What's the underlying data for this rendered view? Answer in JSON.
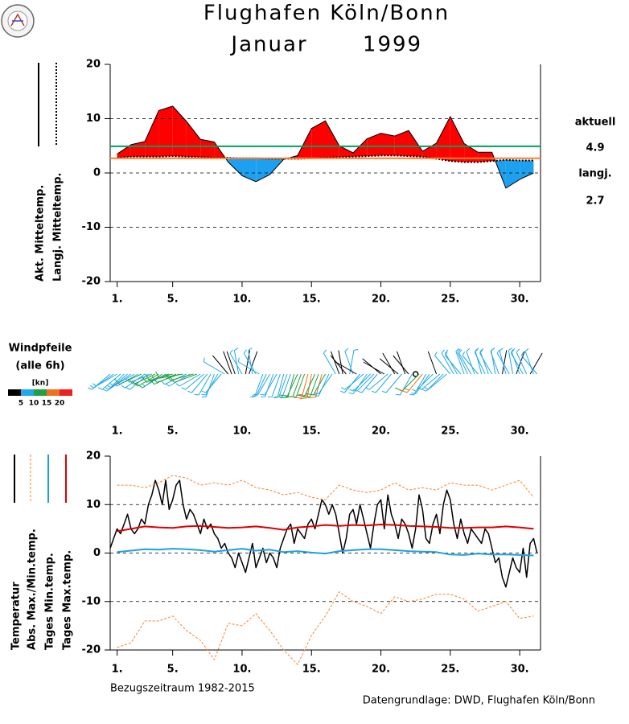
{
  "header": {
    "title": "Flughafen Köln/Bonn",
    "month": "Januar",
    "year": "1999"
  },
  "footer": {
    "reference": "Bezugszeitraum 1982-2015",
    "source": "Datengrundlage: DWD, Flughafen Köln/Bonn"
  },
  "chart_data": [
    {
      "type": "area_line",
      "x": [
        1,
        2,
        3,
        4,
        5,
        6,
        7,
        8,
        9,
        10,
        11,
        12,
        13,
        14,
        15,
        16,
        17,
        18,
        19,
        20,
        21,
        22,
        23,
        24,
        25,
        26,
        27,
        28,
        29,
        30,
        31
      ],
      "series": [
        {
          "name": "Akt. Mitteltemp.",
          "color": "#000000",
          "values": [
            3.5,
            5.2,
            5.8,
            11.5,
            12.3,
            9.5,
            6.2,
            5.7,
            2,
            -0.5,
            -1.6,
            -0.3,
            2.5,
            3.2,
            8.2,
            9.6,
            5,
            3.7,
            6.3,
            7.3,
            6.8,
            7.8,
            4,
            5.5,
            10.4,
            5.4,
            3.8,
            3.8,
            -2.8,
            -1.2,
            0
          ]
        },
        {
          "name": "Langj. Mitteltemp.",
          "color": "#000000",
          "dashed": true,
          "values": [
            2.8,
            3,
            3,
            3,
            3.1,
            3,
            2.9,
            2.8,
            2.8,
            2.7,
            2.7,
            2.6,
            2.6,
            2.6,
            2.7,
            2.8,
            2.9,
            3,
            3.1,
            3.2,
            3.2,
            3.1,
            3,
            2.6,
            2.2,
            2,
            2,
            2.2,
            2.4,
            2.3,
            2.3
          ]
        }
      ],
      "above_color": "#ff0000",
      "below_color": "#1ea0f0",
      "reference_lines": [
        {
          "name": "aktuell",
          "value": 4.9,
          "color": "#00a060"
        },
        {
          "name": "langj.",
          "value": 2.7,
          "color": "#ff7f2a"
        }
      ],
      "xlim": [
        0.5,
        31.5
      ],
      "xticks": [
        {
          "value": 1,
          "label": "1."
        },
        {
          "value": 5,
          "label": "5."
        },
        {
          "value": 10,
          "label": "10."
        },
        {
          "value": 15,
          "label": "15."
        },
        {
          "value": 20,
          "label": "20."
        },
        {
          "value": 25,
          "label": "25."
        },
        {
          "value": 30,
          "label": "30."
        }
      ],
      "ylim": [
        -20,
        20
      ],
      "yticks": [
        -20,
        -10,
        0,
        10,
        20
      ],
      "grid": true
    },
    {
      "type": "wind_barbs",
      "title": "Windpfeile",
      "subtitle": "(alle 6h)",
      "unit": "[kn]",
      "x": [
        0.5,
        0.75,
        1,
        1.25,
        1.5,
        1.75,
        2,
        2.25,
        2.5,
        2.75,
        3,
        3.25,
        3.5,
        3.75,
        4,
        4.25,
        4.5,
        4.75,
        5,
        5.25,
        5.5,
        5.75,
        6,
        6.25,
        6.5,
        6.75,
        7,
        7.25,
        7.5,
        7.75,
        8,
        8.25,
        8.5,
        8.75,
        9,
        9.25,
        9.5,
        9.75,
        10,
        10.25,
        10.5,
        10.75,
        11,
        11.25,
        11.5,
        11.75,
        12,
        12.25,
        12.5,
        12.75,
        13,
        13.25,
        13.5,
        13.75,
        14,
        14.25,
        14.5,
        14.75,
        15,
        15.25,
        15.5,
        15.75,
        16,
        16.25,
        16.5,
        16.75,
        17,
        17.25,
        17.5,
        17.75,
        18,
        18.25,
        18.5,
        18.75,
        19,
        19.25,
        19.5,
        19.75,
        20,
        20.25,
        20.5,
        20.75,
        21,
        21.25,
        21.5,
        21.75,
        22,
        22.25,
        22.5,
        22.75,
        23,
        23.25,
        23.5,
        23.75,
        24,
        24.25,
        24.5,
        24.75,
        25,
        25.25,
        25.5,
        25.75,
        26,
        26.25,
        26.5,
        26.75,
        27,
        27.25,
        27.5,
        27.75,
        28,
        28.25,
        28.5,
        28.75,
        29,
        29.25,
        29.5,
        29.75,
        30,
        30.25,
        30.5,
        30.75,
        31,
        31.25
      ],
      "speed": [
        7,
        8,
        9,
        8,
        8,
        9,
        8,
        7,
        9,
        10,
        8,
        9,
        8,
        10,
        12,
        11,
        9,
        11,
        13,
        10,
        12,
        11,
        9,
        8,
        13,
        10,
        9,
        8,
        7,
        8,
        6,
        7,
        6,
        5,
        4,
        3,
        4,
        8,
        7,
        3,
        4,
        6,
        7,
        6,
        6,
        7,
        8,
        8,
        7,
        8,
        9,
        8,
        9,
        10,
        11,
        10,
        12,
        16,
        17,
        11,
        14,
        18,
        12,
        9,
        7,
        6,
        4,
        3,
        4,
        6,
        5,
        4,
        7,
        8,
        6,
        7,
        6,
        8,
        4,
        3,
        7,
        8,
        3,
        4,
        6,
        3,
        4,
        7,
        0,
        12,
        16,
        7,
        8,
        9,
        4,
        7,
        8,
        9,
        7,
        8,
        8,
        9,
        7,
        8,
        7,
        8,
        6,
        7,
        8,
        7,
        9,
        6,
        7,
        4,
        8,
        6,
        8,
        3,
        7,
        9,
        7,
        4,
        6,
        8
      ],
      "direction": [
        230,
        235,
        240,
        230,
        225,
        230,
        235,
        240,
        240,
        245,
        235,
        230,
        250,
        245,
        240,
        235,
        240,
        250,
        255,
        245,
        250,
        260,
        245,
        240,
        255,
        250,
        240,
        230,
        220,
        210,
        200,
        210,
        220,
        300,
        320,
        340,
        340,
        350,
        330,
        10,
        20,
        350,
        330,
        300,
        200,
        205,
        210,
        200,
        210,
        200,
        195,
        200,
        200,
        195,
        205,
        200,
        200,
        195,
        190,
        205,
        200,
        195,
        210,
        205,
        215,
        330,
        340,
        350,
        320,
        10,
        340,
        300,
        220,
        230,
        215,
        225,
        225,
        220,
        310,
        300,
        230,
        220,
        330,
        310,
        220,
        340,
        320,
        210,
        0,
        225,
        220,
        210,
        215,
        225,
        340,
        230,
        225,
        230,
        320,
        330,
        330,
        320,
        340,
        335,
        330,
        340,
        320,
        345,
        335,
        340,
        330,
        350,
        340,
        10,
        345,
        330,
        350,
        20,
        340,
        330,
        335,
        30,
        340,
        320
      ],
      "scale": {
        "bounds": [
          5,
          10,
          15,
          20
        ],
        "colors": [
          "#000000",
          "#20a8e8",
          "#20a040",
          "#f07020",
          "#f02020"
        ]
      },
      "xlim": [
        0.5,
        31.5
      ],
      "xticks": [
        {
          "value": 1,
          "label": "1."
        },
        {
          "value": 5,
          "label": "5."
        },
        {
          "value": 10,
          "label": "10."
        },
        {
          "value": 15,
          "label": "15."
        },
        {
          "value": 20,
          "label": "20."
        },
        {
          "value": 25,
          "label": "25."
        },
        {
          "value": 30,
          "label": "30."
        }
      ]
    },
    {
      "type": "line",
      "series": [
        {
          "name": "Temperatur",
          "color": "#000000",
          "width": 1.5,
          "x": [
            0.5,
            0.75,
            1,
            1.25,
            1.5,
            1.75,
            2,
            2.25,
            2.5,
            2.75,
            3,
            3.25,
            3.5,
            3.75,
            4,
            4.25,
            4.5,
            4.75,
            5,
            5.25,
            5.5,
            5.75,
            6,
            6.25,
            6.5,
            6.75,
            7,
            7.25,
            7.5,
            7.75,
            8,
            8.25,
            8.5,
            8.75,
            9,
            9.25,
            9.5,
            9.75,
            10,
            10.25,
            10.5,
            10.75,
            11,
            11.25,
            11.5,
            11.75,
            12,
            12.25,
            12.5,
            12.75,
            13,
            13.25,
            13.5,
            13.75,
            14,
            14.25,
            14.5,
            14.75,
            15,
            15.25,
            15.5,
            15.75,
            16,
            16.25,
            16.5,
            16.75,
            17,
            17.25,
            17.5,
            17.75,
            18,
            18.25,
            18.5,
            18.75,
            19,
            19.25,
            19.5,
            19.75,
            20,
            20.25,
            20.5,
            20.75,
            21,
            21.25,
            21.5,
            21.75,
            22,
            22.25,
            22.5,
            22.75,
            23,
            23.25,
            23.5,
            23.75,
            24,
            24.25,
            24.5,
            24.75,
            25,
            25.25,
            25.5,
            25.75,
            26,
            26.25,
            26.5,
            26.75,
            27,
            27.25,
            27.5,
            27.75,
            28,
            28.25,
            28.5,
            28.75,
            29,
            29.25,
            29.5,
            29.75,
            30,
            30.25,
            30.5,
            30.75,
            31,
            31.25
          ],
          "values": [
            1,
            3,
            5,
            4,
            6,
            8,
            5,
            4,
            5,
            7,
            6,
            10,
            12,
            15,
            13,
            10,
            15,
            9,
            11,
            14,
            15,
            10,
            7,
            9,
            8,
            6,
            4,
            7,
            5,
            6,
            4,
            3,
            1,
            2,
            0,
            -1,
            -3,
            0,
            -2,
            -4,
            -1,
            2,
            -3,
            -1,
            1,
            -2,
            0,
            -1,
            -3,
            1,
            3,
            5,
            6,
            2,
            5,
            4,
            3,
            6,
            7,
            5,
            8,
            11,
            10,
            8,
            10,
            8,
            4,
            0,
            3,
            8,
            9,
            6,
            10,
            7,
            4,
            1,
            6,
            10,
            11,
            5,
            12,
            8,
            6,
            3,
            7,
            6,
            4,
            1,
            5,
            12,
            9,
            3,
            2,
            6,
            8,
            4,
            10,
            13,
            11,
            6,
            3,
            7,
            4,
            2,
            5,
            4,
            3,
            2,
            5,
            4,
            1,
            -2,
            -1,
            -5,
            -7,
            -4,
            -1,
            -3,
            -4,
            1,
            -5,
            2,
            3,
            0
          ]
        },
        {
          "name": "Abs. Max./Min.temp.",
          "color": "#ff7f2a",
          "dashed": true,
          "width": 1,
          "x": [
            1,
            2,
            3,
            4,
            5,
            6,
            7,
            8,
            9,
            10,
            11,
            12,
            13,
            14,
            15,
            16,
            17,
            18,
            19,
            20,
            21,
            22,
            23,
            24,
            25,
            26,
            27,
            28,
            29,
            30,
            31
          ],
          "values": [
            14,
            14,
            13.5,
            14.5,
            16,
            15.5,
            14,
            14.5,
            14,
            15,
            13.5,
            13,
            12,
            12.5,
            11.5,
            11,
            14,
            13,
            12.5,
            13,
            14.5,
            13,
            13.5,
            13,
            14.5,
            14,
            14,
            13,
            14,
            15,
            11.5
          ],
          "lower_values": [
            -19.5,
            -18.5,
            -14,
            -14,
            -13,
            -16,
            -18,
            -22,
            -14.5,
            -15,
            -12.5,
            -16,
            -20,
            -23,
            -17,
            -13,
            -8,
            -10,
            -11,
            -12.5,
            -9,
            -10,
            -9.5,
            -8.5,
            -8.5,
            -9.5,
            -12,
            -11,
            -10,
            -13.5,
            -13
          ]
        },
        {
          "name": "Tages Min.temp.",
          "color": "#1ea0e0",
          "width": 2,
          "x": [
            1,
            2,
            3,
            4,
            5,
            6,
            7,
            8,
            9,
            10,
            11,
            12,
            13,
            14,
            15,
            16,
            17,
            18,
            19,
            20,
            21,
            22,
            23,
            24,
            25,
            26,
            27,
            28,
            29,
            30,
            31
          ],
          "values": [
            0.2,
            0.5,
            0.8,
            0.7,
            0.9,
            0.8,
            0.6,
            0.3,
            0.6,
            0.9,
            0.5,
            0.7,
            0.2,
            0.4,
            0.1,
            -0.1,
            0.4,
            0.6,
            0.8,
            0.8,
            0.6,
            0.4,
            0.3,
            0.2,
            -0.3,
            -0.4,
            -0.1,
            -0.3,
            -0.3,
            -0.4,
            -0.5
          ]
        },
        {
          "name": "Tages Max.temp.",
          "color": "#e00000",
          "width": 2,
          "x": [
            1,
            2,
            3,
            4,
            5,
            6,
            7,
            8,
            9,
            10,
            11,
            12,
            13,
            14,
            15,
            16,
            17,
            18,
            19,
            20,
            21,
            22,
            23,
            24,
            25,
            26,
            27,
            28,
            29,
            30,
            31
          ],
          "values": [
            4.5,
            5,
            5.5,
            5.3,
            5.2,
            5.5,
            5.6,
            5.4,
            5.2,
            5.3,
            5.5,
            5.2,
            4.8,
            5.3,
            5.5,
            5.8,
            5.6,
            5.8,
            5.7,
            5.9,
            5.8,
            5.6,
            5.5,
            5.4,
            5.2,
            5.2,
            5.3,
            5.3,
            5.5,
            5.3,
            5
          ]
        }
      ],
      "xlim": [
        0.5,
        31.5
      ],
      "xticks": [
        {
          "value": 1,
          "label": "1."
        },
        {
          "value": 5,
          "label": "5."
        },
        {
          "value": 10,
          "label": "10."
        },
        {
          "value": 15,
          "label": "15."
        },
        {
          "value": 20,
          "label": "20."
        },
        {
          "value": 25,
          "label": "25."
        },
        {
          "value": 30,
          "label": "30."
        }
      ],
      "ylim": [
        -20,
        20
      ],
      "yticks": [
        -20,
        -10,
        0,
        10,
        20
      ],
      "grid": true
    }
  ]
}
